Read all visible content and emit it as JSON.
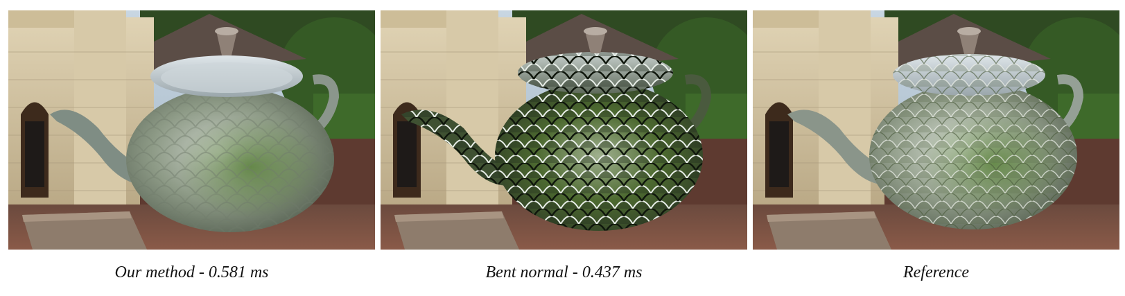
{
  "figure": {
    "panels": [
      {
        "caption": "Our method - 0.581 ms",
        "variant": "smooth"
      },
      {
        "caption": "Bent normal - 0.437 ms",
        "variant": "sharp"
      },
      {
        "caption": "Reference",
        "variant": "reference"
      }
    ]
  },
  "colors": {
    "sky": "#b9c9d6",
    "foliage": "#2d4a1f",
    "stone_wall": "#cfc1a0",
    "roof": "#5a4c45",
    "brick_floor": "#7a4a3c",
    "bench": "#8a7a6a",
    "teapot_metal": "#9aa3a4",
    "teapot_tint": "#5a7a3a"
  }
}
